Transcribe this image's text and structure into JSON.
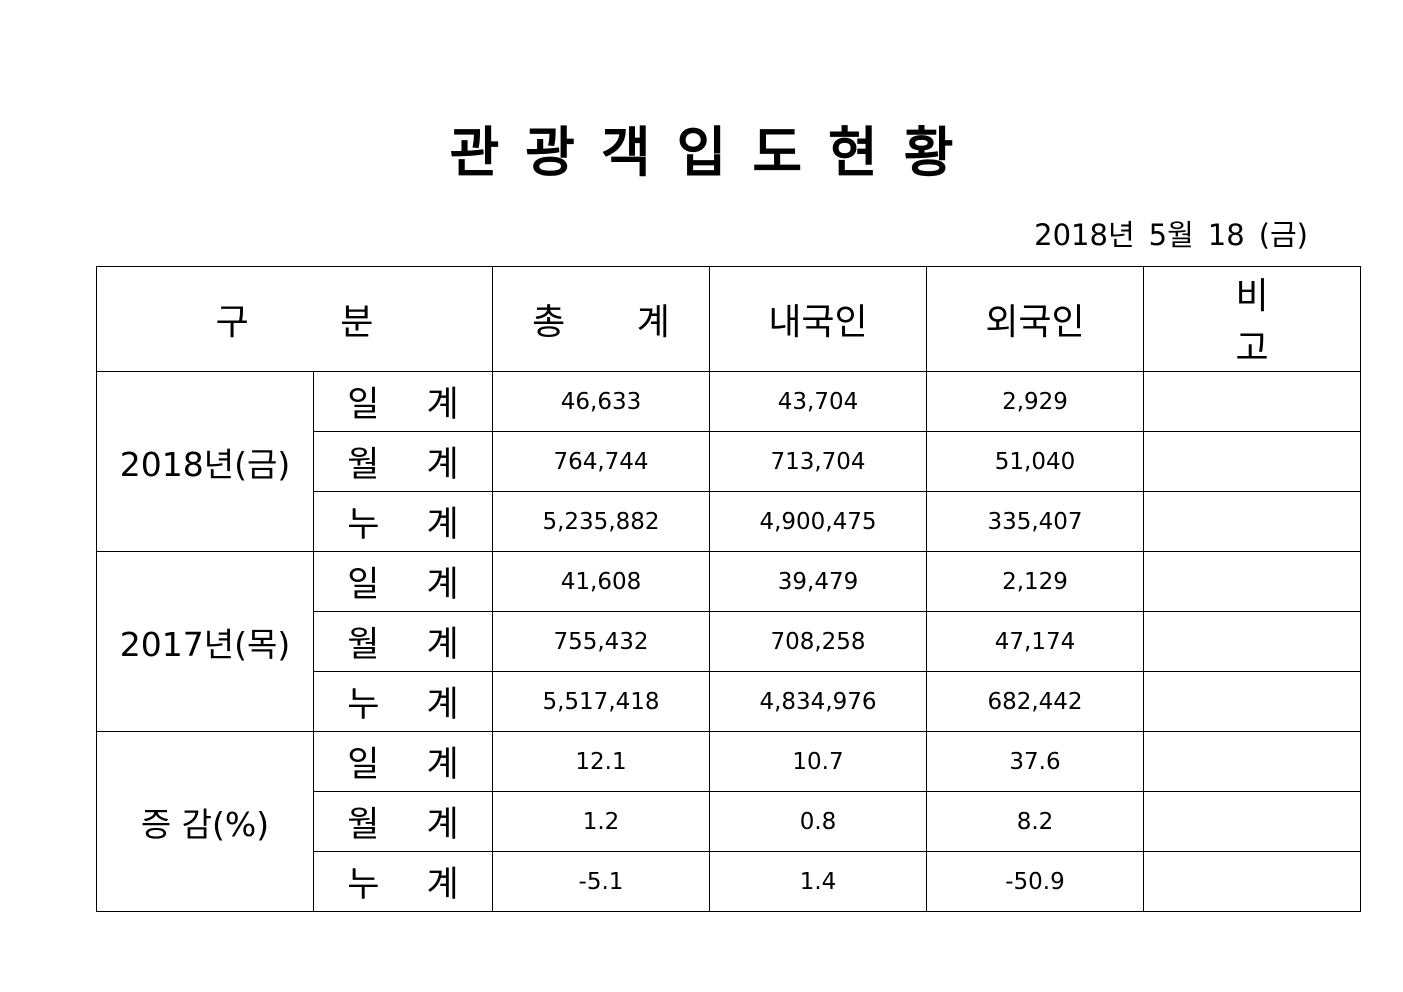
{
  "title": "관광객입도현황",
  "date": {
    "year": "2018년",
    "month": "5월",
    "day": "18",
    "weekday": "(금)"
  },
  "table": {
    "headers": {
      "category": "구 분",
      "total": "총 계",
      "domestic": "내국인",
      "foreign": "외국인",
      "remarks": "비 고"
    },
    "groups": [
      {
        "label": "2018년(금)",
        "rows": [
          {
            "type": "일 계",
            "total": "46,633",
            "domestic": "43,704",
            "foreign": "2,929",
            "remarks": ""
          },
          {
            "type": "월 계",
            "total": "764,744",
            "domestic": "713,704",
            "foreign": "51,040",
            "remarks": ""
          },
          {
            "type": "누 계",
            "total": "5,235,882",
            "domestic": "4,900,475",
            "foreign": "335,407",
            "remarks": ""
          }
        ]
      },
      {
        "label": "2017년(목)",
        "rows": [
          {
            "type": "일 계",
            "total": "41,608",
            "domestic": "39,479",
            "foreign": "2,129",
            "remarks": ""
          },
          {
            "type": "월 계",
            "total": "755,432",
            "domestic": "708,258",
            "foreign": "47,174",
            "remarks": ""
          },
          {
            "type": "누 계",
            "total": "5,517,418",
            "domestic": "4,834,976",
            "foreign": "682,442",
            "remarks": ""
          }
        ]
      },
      {
        "label": "증 감(%)",
        "rows": [
          {
            "type": "일 계",
            "total": "12.1",
            "domestic": "10.7",
            "foreign": "37.6",
            "remarks": ""
          },
          {
            "type": "월 계",
            "total": "1.2",
            "domestic": "0.8",
            "foreign": "8.2",
            "remarks": ""
          },
          {
            "type": "누 계",
            "total": "-5.1",
            "domestic": "1.4",
            "foreign": "-50.9",
            "remarks": ""
          }
        ]
      }
    ]
  }
}
